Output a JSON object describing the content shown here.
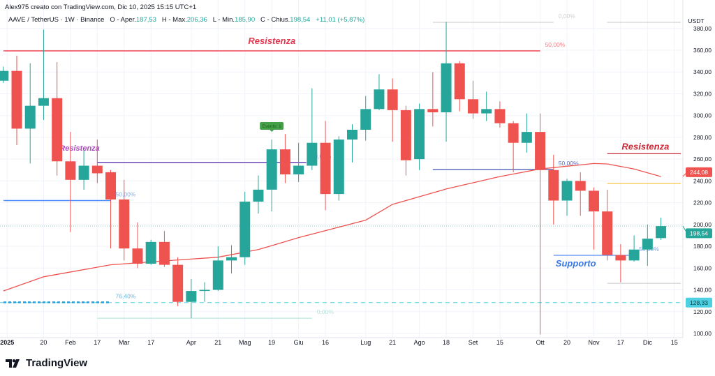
{
  "header": {
    "author_line": "Alex975 creato con TradingView.com, Dic 10, 2025 15:15 UTC+1",
    "symbol": "AAVE / TetherUS · 1W · Binance",
    "open_label": "O - Aper.",
    "open": "187,53",
    "high_label": "H - Max.",
    "high": "206,36",
    "low_label": "L - Min.",
    "low": "185,90",
    "close_label": "C - Chius.",
    "close": "198,54",
    "change": "+11,01 (+5,87%)"
  },
  "brand": {
    "name": "TradingView"
  },
  "colors": {
    "up": "#26a69a",
    "down": "#ef5350",
    "ma": "#ef5350",
    "grid": "#f0f3fa"
  },
  "chart_data": {
    "type": "candlestick",
    "currency": "USDT",
    "ylim": [
      100,
      380
    ],
    "y_ticks": [
      100,
      120,
      140,
      160,
      180,
      200,
      220,
      240,
      260,
      280,
      300,
      320,
      340,
      360,
      380
    ],
    "y_tick_labels": [
      "100,00",
      "120,00",
      "140,00",
      "160,00",
      "180,00",
      "200,00",
      "220,00",
      "240,00",
      "260,00",
      "280,00",
      "300,00",
      "320,00",
      "340,00",
      "360,00",
      "380,00"
    ],
    "x_ticks": [
      {
        "date": "2025-01-01",
        "label": "2025"
      },
      {
        "date": "2025-01-20",
        "label": "20"
      },
      {
        "date": "2025-02-03",
        "label": "Feb"
      },
      {
        "date": "2025-02-17",
        "label": "17"
      },
      {
        "date": "2025-03-03",
        "label": "Mar"
      },
      {
        "date": "2025-03-17",
        "label": "17"
      },
      {
        "date": "2025-04-07",
        "label": "Apr"
      },
      {
        "date": "2025-04-21",
        "label": "21"
      },
      {
        "date": "2025-05-05",
        "label": "Mag"
      },
      {
        "date": "2025-05-19",
        "label": "19"
      },
      {
        "date": "2025-06-02",
        "label": "Giu"
      },
      {
        "date": "2025-06-16",
        "label": "16"
      },
      {
        "date": "2025-07-07",
        "label": "Lug"
      },
      {
        "date": "2025-07-21",
        "label": "21"
      },
      {
        "date": "2025-08-04",
        "label": "Ago"
      },
      {
        "date": "2025-08-18",
        "label": "18"
      },
      {
        "date": "2025-09-01",
        "label": "Set"
      },
      {
        "date": "2025-09-15",
        "label": "15"
      },
      {
        "date": "2025-10-06",
        "label": "Ott"
      },
      {
        "date": "2025-10-20",
        "label": "20"
      },
      {
        "date": "2025-11-03",
        "label": "Nov"
      },
      {
        "date": "2025-11-17",
        "label": "17"
      },
      {
        "date": "2025-12-01",
        "label": "Dic"
      },
      {
        "date": "2025-12-15",
        "label": "15"
      }
    ],
    "candles": [
      [
        "2024-12-30",
        332,
        345,
        330,
        341
      ],
      [
        "2025-01-06",
        341,
        355,
        273,
        288
      ],
      [
        "2025-01-13",
        288,
        348,
        256,
        309
      ],
      [
        "2025-01-20",
        309,
        379,
        296,
        316
      ],
      [
        "2025-01-27",
        316,
        349,
        245,
        258
      ],
      [
        "2025-02-03",
        258,
        285,
        193,
        241
      ],
      [
        "2025-02-10",
        241,
        268,
        232,
        254
      ],
      [
        "2025-02-17",
        254,
        278,
        238,
        247
      ],
      [
        "2025-02-24",
        248,
        250,
        178,
        223
      ],
      [
        "2025-03-03",
        223,
        241,
        167,
        178
      ],
      [
        "2025-03-10",
        178,
        202,
        160,
        164
      ],
      [
        "2025-03-17",
        164,
        186,
        163,
        184
      ],
      [
        "2025-03-24",
        184,
        194,
        161,
        163
      ],
      [
        "2025-03-31",
        163,
        170,
        125,
        129
      ],
      [
        "2025-04-07",
        129,
        150,
        114,
        139
      ],
      [
        "2025-04-14",
        139,
        147,
        129,
        140
      ],
      [
        "2025-04-21",
        140,
        180,
        139,
        167
      ],
      [
        "2025-04-28",
        167,
        181,
        155,
        170
      ],
      [
        "2025-05-05",
        170,
        230,
        163,
        221
      ],
      [
        "2025-05-12",
        221,
        245,
        210,
        232
      ],
      [
        "2025-05-19",
        232,
        278,
        212,
        269
      ],
      [
        "2025-05-26",
        269,
        283,
        238,
        246
      ],
      [
        "2025-06-02",
        246,
        275,
        239,
        254
      ],
      [
        "2025-06-09",
        254,
        325,
        250,
        275
      ],
      [
        "2025-06-16",
        275,
        295,
        213,
        228
      ],
      [
        "2025-06-23",
        228,
        281,
        222,
        278
      ],
      [
        "2025-06-30",
        278,
        292,
        257,
        287
      ],
      [
        "2025-07-07",
        287,
        318,
        277,
        306
      ],
      [
        "2025-07-14",
        306,
        338,
        305,
        324
      ],
      [
        "2025-07-21",
        324,
        334,
        276,
        305
      ],
      [
        "2025-07-28",
        305,
        309,
        245,
        259
      ],
      [
        "2025-08-04",
        260,
        311,
        250,
        306
      ],
      [
        "2025-08-11",
        306,
        340,
        290,
        303
      ],
      [
        "2025-08-18",
        303,
        386,
        276,
        348
      ],
      [
        "2025-08-25",
        348,
        350,
        304,
        315
      ],
      [
        "2025-09-01",
        315,
        332,
        297,
        302
      ],
      [
        "2025-09-08",
        302,
        322,
        295,
        306
      ],
      [
        "2025-09-15",
        306,
        313,
        289,
        293
      ],
      [
        "2025-09-22",
        293,
        295,
        248,
        275
      ],
      [
        "2025-09-29",
        275,
        302,
        266,
        285
      ],
      [
        "2025-10-06",
        285,
        302,
        99,
        250
      ],
      [
        "2025-10-13",
        250,
        264,
        200,
        222
      ],
      [
        "2025-10-20",
        222,
        242,
        208,
        240
      ],
      [
        "2025-10-27",
        240,
        248,
        208,
        231
      ],
      [
        "2025-11-03",
        231,
        234,
        177,
        212
      ],
      [
        "2025-11-10",
        212,
        232,
        167,
        172
      ],
      [
        "2025-11-17",
        172,
        182,
        147,
        167
      ],
      [
        "2025-11-24",
        167,
        190,
        166,
        177
      ],
      [
        "2025-12-01",
        177,
        200,
        162,
        187
      ],
      [
        "2025-12-08",
        187.53,
        206.36,
        185.9,
        198.54
      ]
    ],
    "moving_average": [
      [
        "2024-12-30",
        139
      ],
      [
        "2025-01-20",
        152
      ],
      [
        "2025-02-24",
        163
      ],
      [
        "2025-03-24",
        166.6
      ],
      [
        "2025-04-21",
        170
      ],
      [
        "2025-05-12",
        177
      ],
      [
        "2025-06-02",
        188
      ],
      [
        "2025-07-07",
        204
      ],
      [
        "2025-07-21",
        218.5
      ],
      [
        "2025-08-18",
        232.6
      ],
      [
        "2025-09-15",
        244
      ],
      [
        "2025-10-06",
        251
      ],
      [
        "2025-11-03",
        256
      ],
      [
        "2025-11-10",
        255.6
      ],
      [
        "2025-11-24",
        251
      ],
      [
        "2025-12-08",
        244
      ]
    ],
    "price_labels": [
      {
        "value": "244,08",
        "price": 244.08,
        "color": "#ef5350"
      },
      {
        "value": "198,54",
        "price": 198.54,
        "color": "#26a69a"
      },
      {
        "value": "128,33",
        "price": 128.33,
        "color": "#4dd0e1"
      }
    ],
    "annotations": [
      {
        "kind": "hline",
        "price": 359.4,
        "from": "2024-12-30",
        "to": "2025-10-06",
        "color": "#f23645",
        "width": 1.3,
        "label": "Resistenza",
        "label_color": "#e53950",
        "label_pos": "above-center",
        "fib": "50,00%",
        "fib_color": "#f47c86"
      },
      {
        "kind": "hline",
        "price": 385.6,
        "from": "2025-08-11",
        "to": "2025-10-13",
        "color": "#c8c8c8",
        "width": 1,
        "fib": "0,00%",
        "fib_color": "#d0d0d0"
      },
      {
        "kind": "hline",
        "price": 385.6,
        "from": "2025-11-10",
        "to": "2025-12-22",
        "color": "#c8c8c8",
        "width": 1
      },
      {
        "kind": "hline",
        "price": 265,
        "from": "2025-11-10",
        "to": "2025-12-22",
        "color": "#c62836",
        "width": 1.3,
        "label": "Resistenza",
        "label_color": "#c62836",
        "label_pos": "above-right"
      },
      {
        "kind": "hline",
        "price": 237.7,
        "from": "2025-11-10",
        "to": "2025-12-22",
        "color": "#f7c548",
        "width": 1.3
      },
      {
        "kind": "hline",
        "price": 146,
        "from": "2025-11-10",
        "to": "2025-12-22",
        "color": "#c8c8c8",
        "width": 1
      },
      {
        "kind": "hline",
        "price": 171.7,
        "from": "2025-10-13",
        "to": "2025-11-24",
        "color": "#5b8def",
        "width": 1.3,
        "label": "Supporto",
        "label_color": "#3b78e7",
        "label_pos": "below-left",
        "fib": "50,00%",
        "fib_color": "#7fa8f0"
      },
      {
        "kind": "hline",
        "price": 250.5,
        "from": "2025-08-11",
        "to": "2025-10-13",
        "color": "#3f51b5",
        "width": 1.3,
        "fib": "50,00%",
        "fib_color": "#5c6bc0"
      },
      {
        "kind": "hline",
        "price": 257,
        "from": "2025-02-17",
        "to": "2025-06-06",
        "color": "#5e35b1",
        "width": 1.3,
        "label": "Resistenza",
        "label_color": "#ab47bc",
        "label_pos": "above-left",
        "fib": "50,00%",
        "fib_color": "#9fa8da"
      },
      {
        "kind": "hline",
        "price": 222,
        "from": "2024-12-30",
        "to": "2025-02-24",
        "color": "#448aff",
        "width": 1.5,
        "fib": "50,00%",
        "fib_color": "#7fb0f5"
      },
      {
        "kind": "hline",
        "price": 128.6,
        "from": "2024-12-30",
        "to": "2025-02-24",
        "color": "#2a9fd6",
        "width": 2.5,
        "dash": "4 3",
        "fib": "76,40%",
        "fib_color": "#63b7e0"
      },
      {
        "kind": "hline",
        "price": 114,
        "from": "2025-02-17",
        "to": "2025-06-09",
        "color": "#a6e0d8",
        "width": 1,
        "fib": "0,00%",
        "fib_color": "#b2e6de"
      }
    ],
    "reference_lines": [
      {
        "price": 128.33,
        "style": "dashed",
        "color": "#4dd0e1"
      },
      {
        "price": 198.54,
        "style": "dotted",
        "color": "#8fcfc5"
      }
    ],
    "events": {
      "date": "2025-05-19",
      "label": "Events: 1",
      "color": "#43a047"
    }
  }
}
